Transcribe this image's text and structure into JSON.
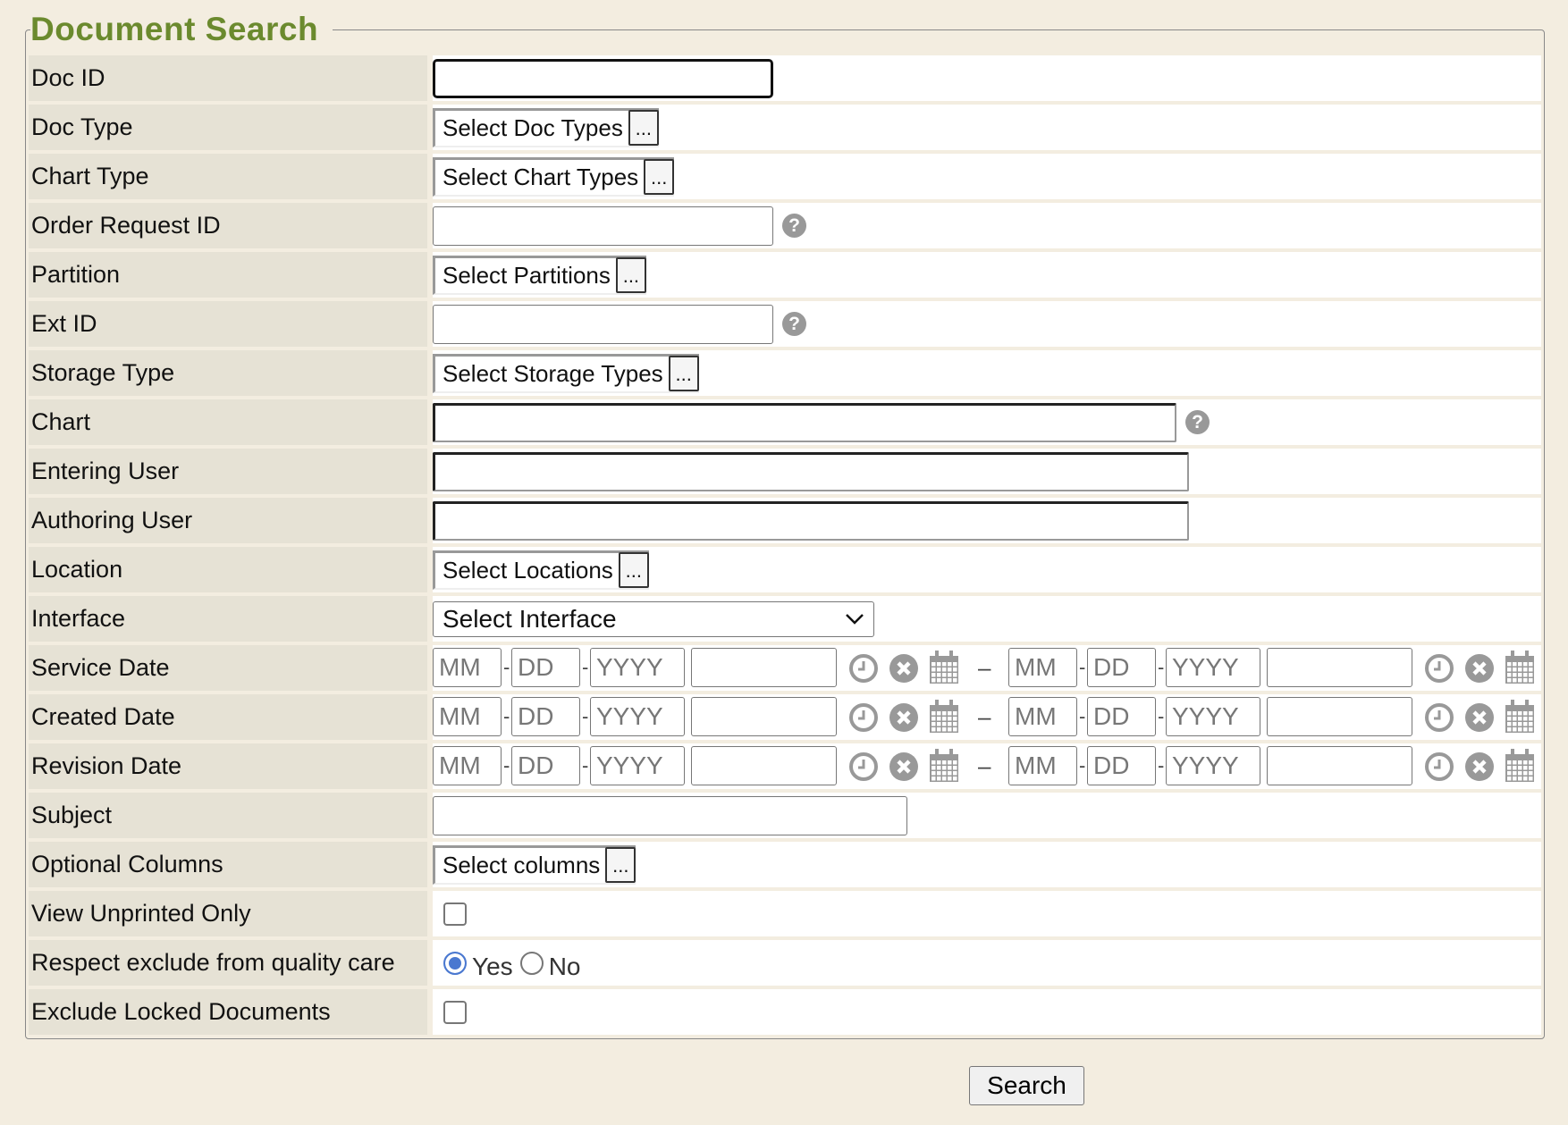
{
  "title": "Document Search",
  "labels": {
    "doc_id": "Doc ID",
    "doc_type": "Doc Type",
    "chart_type": "Chart Type",
    "order_request_id": "Order Request ID",
    "partition": "Partition",
    "ext_id": "Ext ID",
    "storage_type": "Storage Type",
    "chart": "Chart",
    "entering_user": "Entering User",
    "authoring_user": "Authoring User",
    "location": "Location",
    "interface": "Interface",
    "service_date": "Service Date",
    "created_date": "Created Date",
    "revision_date": "Revision Date",
    "subject": "Subject",
    "optional_columns": "Optional Columns",
    "view_unprinted": "View Unprinted Only",
    "respect_exclude": "Respect exclude from quality care",
    "exclude_locked": "Exclude Locked Documents"
  },
  "pickers": {
    "doc_type": "Select Doc Types",
    "chart_type": "Select Chart Types",
    "partition": "Select Partitions",
    "storage_type": "Select Storage Types",
    "location": "Select Locations",
    "optional_columns": "Select columns",
    "dots": "..."
  },
  "interface_select": "Select Interface",
  "date_placeholders": {
    "mm": "MM",
    "dd": "DD",
    "yyyy": "YYYY",
    "sep": "-",
    "range": "–"
  },
  "help": "?",
  "radio": {
    "yes": "Yes",
    "no": "No",
    "selected": "Yes"
  },
  "checkboxes": {
    "view_unprinted": false,
    "exclude_locked": false
  },
  "search_button": "Search",
  "colors": {
    "title": "#6b8a2e",
    "radio": "#4a78d0",
    "label_bg": "#e6e2d5",
    "page_bg": "#f3ede0"
  }
}
